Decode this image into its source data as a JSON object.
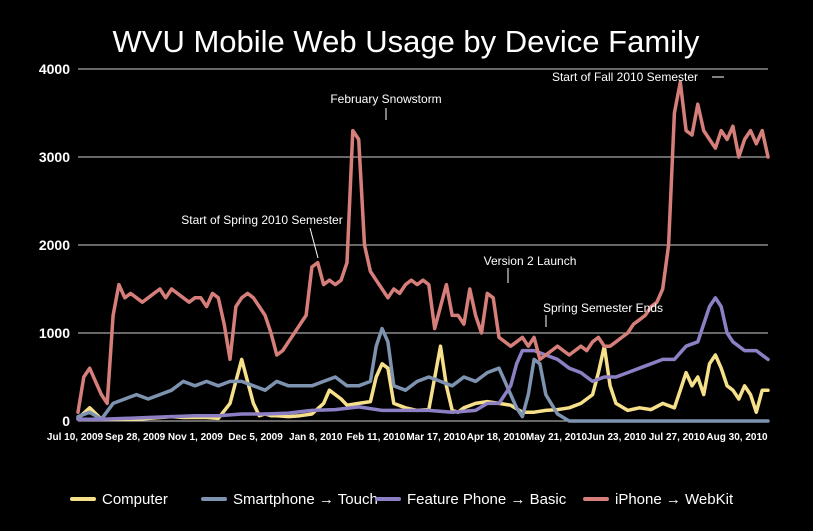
{
  "chart_data": {
    "type": "line",
    "title": "WVU Mobile Web Usage by Device Family",
    "xlabel": "",
    "ylabel": "",
    "ylim": [
      0,
      4000
    ],
    "yticks": [
      "0",
      "1000",
      "2000",
      "3000",
      "4000"
    ],
    "grid": true,
    "legend_position": "bottom",
    "xtick_labels": [
      "Jul 10, 2009",
      "Sep 28, 2009",
      "Nov 1, 2009",
      "Dec 5, 2009",
      "Jan 8, 2010",
      "Feb 11, 2010",
      "Mar 17, 2010",
      "Apr 18, 2010",
      "May 21, 2010",
      "Jun 23, 2010",
      "Jul 27, 2010",
      "Aug 30, 2010"
    ],
    "annotations": [
      {
        "text": "February Snowstorm",
        "x": 53.5,
        "y": 3300
      },
      {
        "text": "Start of Spring 2010 Semester",
        "x": 44.5,
        "y": 1800
      },
      {
        "text": "Version 2 Launch",
        "x": 77.5,
        "y": 1500
      },
      {
        "text": "Spring Semester Ends",
        "x": 81,
        "y": 1050
      },
      {
        "text": "Start of Fall 2010 Semester",
        "x": 109.5,
        "y": 3850
      }
    ],
    "series": [
      {
        "name": "Computer",
        "color": "#f7e08a",
        "x": [
          0,
          2,
          4,
          6,
          8,
          10,
          12,
          14,
          16,
          18,
          20,
          22,
          24,
          26,
          28,
          30,
          31,
          32,
          33,
          34,
          36,
          38,
          40,
          42,
          43,
          44,
          45,
          46,
          48,
          50,
          51,
          52,
          53,
          54,
          56,
          58,
          60,
          62,
          63,
          64,
          65,
          66,
          68,
          70,
          72,
          74,
          76,
          78,
          80,
          82,
          84,
          86,
          88,
          89,
          90,
          91,
          92,
          94,
          96,
          98,
          100,
          102,
          103,
          104,
          105,
          106,
          107,
          108,
          109,
          110,
          111,
          112,
          113,
          114,
          115,
          116,
          117,
          118
        ],
        "values": [
          30,
          150,
          20,
          20,
          20,
          20,
          30,
          40,
          50,
          40,
          40,
          40,
          30,
          200,
          700,
          200,
          60,
          80,
          60,
          60,
          50,
          60,
          80,
          200,
          350,
          300,
          250,
          180,
          200,
          220,
          500,
          650,
          600,
          200,
          150,
          120,
          130,
          850,
          400,
          120,
          100,
          150,
          200,
          220,
          200,
          180,
          100,
          100,
          120,
          130,
          150,
          200,
          300,
          550,
          850,
          400,
          200,
          120,
          150,
          130,
          200,
          150,
          350,
          550,
          400,
          500,
          300,
          650,
          750,
          600,
          400,
          350,
          250,
          400,
          300,
          100,
          350,
          350
        ]
      },
      {
        "name": "Smartphone → Touch",
        "color": "#7d93b0",
        "x": [
          0,
          2,
          4,
          6,
          8,
          10,
          12,
          14,
          16,
          18,
          20,
          22,
          24,
          26,
          28,
          30,
          32,
          34,
          36,
          38,
          40,
          42,
          44,
          46,
          48,
          50,
          51,
          52,
          53,
          54,
          56,
          58,
          60,
          62,
          64,
          66,
          68,
          70,
          72,
          73,
          74,
          75,
          76,
          77,
          78,
          79,
          80,
          82,
          84,
          86,
          88,
          90,
          100,
          110,
          118
        ],
        "values": [
          50,
          100,
          20,
          200,
          250,
          300,
          250,
          300,
          350,
          450,
          400,
          450,
          400,
          450,
          450,
          400,
          350,
          450,
          400,
          400,
          400,
          450,
          500,
          400,
          400,
          450,
          850,
          1050,
          900,
          400,
          350,
          450,
          500,
          450,
          400,
          500,
          450,
          550,
          600,
          450,
          300,
          150,
          50,
          300,
          700,
          650,
          300,
          80,
          0,
          0,
          0,
          0,
          0,
          0,
          0
        ]
      },
      {
        "name": "Feature Phone → Basic",
        "color": "#8c7fc4",
        "x": [
          0,
          4,
          8,
          12,
          16,
          20,
          24,
          28,
          32,
          36,
          40,
          44,
          48,
          52,
          56,
          60,
          64,
          68,
          70,
          72,
          74,
          75,
          76,
          78,
          80,
          82,
          84,
          86,
          88,
          90,
          92,
          94,
          96,
          98,
          100,
          102,
          104,
          106,
          108,
          109,
          110,
          111,
          112,
          114,
          116,
          118
        ],
        "values": [
          20,
          20,
          30,
          40,
          50,
          60,
          60,
          80,
          80,
          90,
          120,
          130,
          160,
          120,
          120,
          120,
          100,
          120,
          200,
          200,
          400,
          650,
          800,
          800,
          750,
          700,
          600,
          550,
          450,
          500,
          500,
          550,
          600,
          650,
          700,
          700,
          850,
          900,
          1300,
          1400,
          1300,
          1000,
          900,
          800,
          800,
          700
        ]
      },
      {
        "name": "iPhone → WebKit",
        "color": "#d57e7a",
        "x": [
          0,
          1,
          2,
          3,
          4,
          5,
          6,
          7,
          8,
          9,
          10,
          11,
          12,
          13,
          14,
          15,
          16,
          17,
          18,
          19,
          20,
          21,
          22,
          23,
          24,
          25,
          26,
          27,
          28,
          29,
          30,
          31,
          32,
          33,
          34,
          35,
          36,
          37,
          38,
          39,
          40,
          41,
          42,
          43,
          44,
          45,
          46,
          47,
          48,
          49,
          50,
          51,
          52,
          53,
          54,
          55,
          56,
          57,
          58,
          59,
          60,
          61,
          62,
          63,
          64,
          65,
          66,
          67,
          68,
          69,
          70,
          71,
          72,
          73,
          74,
          75,
          76,
          77,
          78,
          79,
          80,
          81,
          82,
          83,
          84,
          85,
          86,
          87,
          88,
          89,
          90,
          91,
          92,
          93,
          94,
          95,
          96,
          97,
          98,
          99,
          100,
          101,
          102,
          103,
          104,
          105,
          106,
          107,
          108,
          109,
          110,
          111,
          112,
          113,
          114,
          115,
          116,
          117,
          118
        ],
        "values": [
          100,
          500,
          600,
          450,
          300,
          200,
          1200,
          1550,
          1400,
          1450,
          1400,
          1350,
          1400,
          1450,
          1500,
          1400,
          1500,
          1450,
          1400,
          1350,
          1400,
          1400,
          1300,
          1450,
          1400,
          1100,
          700,
          1300,
          1400,
          1450,
          1400,
          1300,
          1200,
          1000,
          750,
          800,
          900,
          1000,
          1100,
          1200,
          1750,
          1800,
          1550,
          1600,
          1550,
          1600,
          1800,
          3300,
          3200,
          2000,
          1700,
          1600,
          1500,
          1400,
          1500,
          1450,
          1550,
          1600,
          1550,
          1600,
          1550,
          1050,
          1300,
          1550,
          1200,
          1200,
          1100,
          1500,
          1200,
          1000,
          1450,
          1400,
          950,
          900,
          850,
          900,
          950,
          850,
          950,
          700,
          750,
          800,
          850,
          800,
          750,
          800,
          850,
          800,
          900,
          950,
          850,
          850,
          900,
          950,
          1000,
          1100,
          1150,
          1200,
          1300,
          1350,
          1500,
          2000,
          3500,
          3850,
          3300,
          3250,
          3600,
          3300,
          3200,
          3100,
          3300,
          3200,
          3350,
          3000,
          3200,
          3300,
          3150,
          3300,
          3000
        ]
      }
    ]
  }
}
